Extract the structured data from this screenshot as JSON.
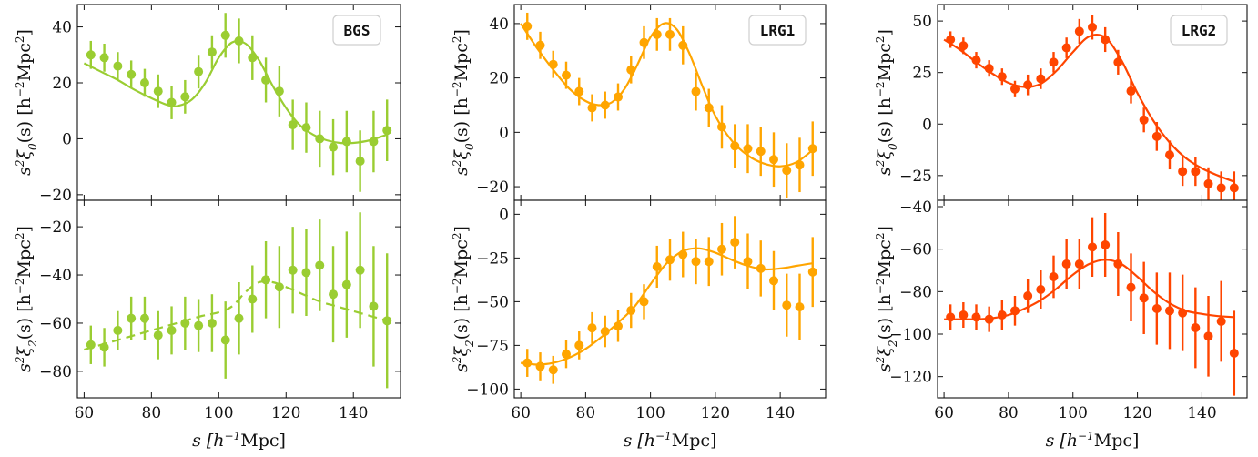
{
  "chart_data": {
    "type": "scatter",
    "layout": "2 rows x 3 columns, shared x-axis per column",
    "xlabel": "s [h⁻¹Mpc]",
    "ylabel_top": "s²ξ₀(s) [h⁻²Mpc²]",
    "ylabel_bottom": "s²ξ₂(s) [h⁻²Mpc²]",
    "xlim": [
      58,
      154
    ],
    "xticks": [
      60,
      80,
      100,
      120,
      140
    ],
    "x": [
      62,
      66,
      70,
      74,
      78,
      82,
      86,
      90,
      94,
      98,
      102,
      106,
      110,
      114,
      118,
      122,
      126,
      130,
      134,
      138,
      142,
      146,
      150
    ],
    "panels": [
      {
        "tracer": "BGS",
        "color": "#9acd32",
        "monopole": {
          "ylim": [
            -22,
            48
          ],
          "yticks": [
            -20,
            0,
            20,
            40
          ],
          "values": [
            30,
            29,
            26,
            23,
            20,
            17,
            13,
            15,
            24,
            31,
            37,
            35,
            29,
            21,
            17,
            5,
            4,
            0,
            -3,
            -1,
            -8,
            -1,
            3
          ],
          "errors": [
            5,
            5,
            5,
            5,
            5,
            6,
            6,
            6,
            6,
            6,
            8,
            8,
            8,
            8,
            9,
            9,
            9,
            10,
            10,
            11,
            11,
            11,
            11
          ],
          "model_x": [
            60,
            65,
            70,
            75,
            80,
            85,
            88,
            92,
            96,
            100,
            104,
            108,
            112,
            116,
            120,
            124,
            128,
            132,
            136,
            140,
            145,
            150
          ],
          "model_y": [
            27,
            24,
            21,
            17.5,
            14.5,
            12,
            11.8,
            14,
            20,
            29,
            34.5,
            34,
            28,
            19,
            11,
            5,
            1.5,
            -0.5,
            -1.5,
            -1.5,
            -0.5,
            1.5
          ],
          "model_style": "solid"
        },
        "quadrupole": {
          "ylim": [
            -91,
            -9
          ],
          "yticks": [
            -80,
            -60,
            -40,
            -20
          ],
          "values": [
            -69,
            -70,
            -63,
            -58,
            -58,
            -65,
            -63,
            -60,
            -61,
            -60,
            -67,
            -58,
            -50,
            -42,
            -45,
            -38,
            -39,
            -36,
            -48,
            -44,
            -38,
            -53,
            -59
          ],
          "errors": [
            8,
            8,
            8,
            9,
            9,
            10,
            10,
            11,
            11,
            12,
            16,
            15,
            14,
            16,
            17,
            18,
            18,
            19,
            20,
            22,
            24,
            25,
            28
          ],
          "model_x": [
            60,
            65,
            70,
            75,
            80,
            85,
            90,
            95,
            100,
            104,
            108,
            112,
            116,
            120,
            125,
            130,
            135,
            140,
            145,
            150
          ],
          "model_y": [
            -71,
            -69,
            -67,
            -65,
            -63,
            -61,
            -59,
            -57,
            -55.5,
            -53,
            -47,
            -43,
            -43,
            -45,
            -48,
            -51,
            -53,
            -55,
            -57,
            -59
          ],
          "model_style": "dashed"
        }
      },
      {
        "tracer": "LRG1",
        "color": "#ffa500",
        "monopole": {
          "ylim": [
            -25,
            47
          ],
          "yticks": [
            -20,
            0,
            20,
            40
          ],
          "values": [
            39,
            32,
            25,
            21,
            15,
            9,
            10,
            13,
            23,
            33,
            36,
            36,
            32,
            15,
            9,
            2,
            -5,
            -6,
            -7,
            -10,
            -14,
            -12,
            -6
          ],
          "errors": [
            5,
            5,
            5,
            5,
            5,
            5,
            5,
            5,
            5,
            6,
            6,
            6,
            7,
            7,
            7,
            8,
            8,
            9,
            9,
            10,
            10,
            10,
            10
          ],
          "model_x": [
            60,
            65,
            70,
            75,
            80,
            84,
            88,
            92,
            96,
            100,
            104,
            108,
            112,
            116,
            120,
            125,
            130,
            135,
            140,
            145,
            150
          ],
          "model_y": [
            40,
            31,
            23,
            16,
            11.5,
            10,
            11,
            16,
            25,
            35,
            40,
            38,
            29,
            17,
            6,
            -3,
            -8.5,
            -11.5,
            -12.5,
            -11,
            -6.5
          ],
          "model_style": "solid"
        },
        "quadrupole": {
          "ylim": [
            -105,
            8
          ],
          "yticks": [
            -100,
            -75,
            -50,
            -25,
            0
          ],
          "values": [
            -85,
            -87,
            -89,
            -80,
            -75,
            -65,
            -67,
            -64,
            -55,
            -50,
            -30,
            -26,
            -23,
            -27,
            -27,
            -20,
            -16,
            -27,
            -31,
            -38,
            -52,
            -53,
            -33
          ],
          "errors": [
            8,
            8,
            8,
            8,
            8,
            9,
            9,
            9,
            10,
            10,
            12,
            12,
            13,
            13,
            14,
            15,
            15,
            16,
            16,
            17,
            18,
            19,
            20
          ],
          "model_x": [
            60,
            65,
            70,
            75,
            80,
            85,
            90,
            95,
            100,
            105,
            110,
            115,
            120,
            125,
            130,
            135,
            140,
            145,
            150
          ],
          "model_y": [
            -85,
            -86,
            -85,
            -82,
            -77,
            -70,
            -62,
            -53,
            -40,
            -28,
            -21,
            -19.5,
            -22,
            -26,
            -29.5,
            -31.5,
            -31,
            -29.5,
            -28
          ],
          "model_style": "solid"
        }
      },
      {
        "tracer": "LRG2",
        "color": "#ff4500",
        "monopole": {
          "ylim": [
            -37,
            58
          ],
          "yticks": [
            -25,
            0,
            25,
            50
          ],
          "values": [
            41,
            38,
            31,
            27,
            23,
            17,
            19,
            22,
            30,
            37,
            45,
            47,
            41,
            30,
            16,
            2,
            -6,
            -15,
            -23,
            -23,
            -29,
            -31,
            -31
          ],
          "errors": [
            4,
            4,
            4,
            4,
            4,
            4,
            5,
            5,
            5,
            5,
            6,
            6,
            6,
            6,
            6,
            6,
            7,
            7,
            7,
            7,
            8,
            8,
            8
          ],
          "model_x": [
            60,
            65,
            70,
            75,
            80,
            85,
            90,
            95,
            100,
            105,
            110,
            115,
            120,
            125,
            130,
            135,
            140,
            145,
            150
          ],
          "model_y": [
            41,
            36,
            30,
            24.5,
            20,
            18,
            19.5,
            26,
            35,
            42.5,
            42,
            31,
            15,
            1.5,
            -9,
            -16.5,
            -21.5,
            -25,
            -28
          ],
          "model_style": "solid"
        },
        "quadrupole": {
          "ylim": [
            -130,
            -37
          ],
          "yticks": [
            -120,
            -100,
            -80,
            -60,
            -40
          ],
          "values": [
            -92,
            -91,
            -92,
            -93,
            -91,
            -89,
            -82,
            -79,
            -73,
            -67,
            -67,
            -59,
            -58,
            -67,
            -78,
            -83,
            -88,
            -89,
            -90,
            -97,
            -101,
            -94,
            -109
          ],
          "errors": [
            6,
            6,
            6,
            6,
            7,
            7,
            8,
            9,
            10,
            12,
            12,
            14,
            15,
            15,
            16,
            17,
            17,
            18,
            18,
            19,
            19,
            19,
            20
          ],
          "model_x": [
            60,
            65,
            70,
            75,
            80,
            85,
            90,
            95,
            100,
            105,
            110,
            115,
            120,
            125,
            130,
            135,
            140,
            145,
            150
          ],
          "model_y": [
            -93,
            -93,
            -93,
            -92.5,
            -91,
            -88,
            -84,
            -78.5,
            -72,
            -67,
            -65,
            -67,
            -73,
            -80,
            -85.5,
            -89,
            -90.5,
            -91.5,
            -92
          ],
          "model_style": "solid"
        }
      }
    ]
  }
}
